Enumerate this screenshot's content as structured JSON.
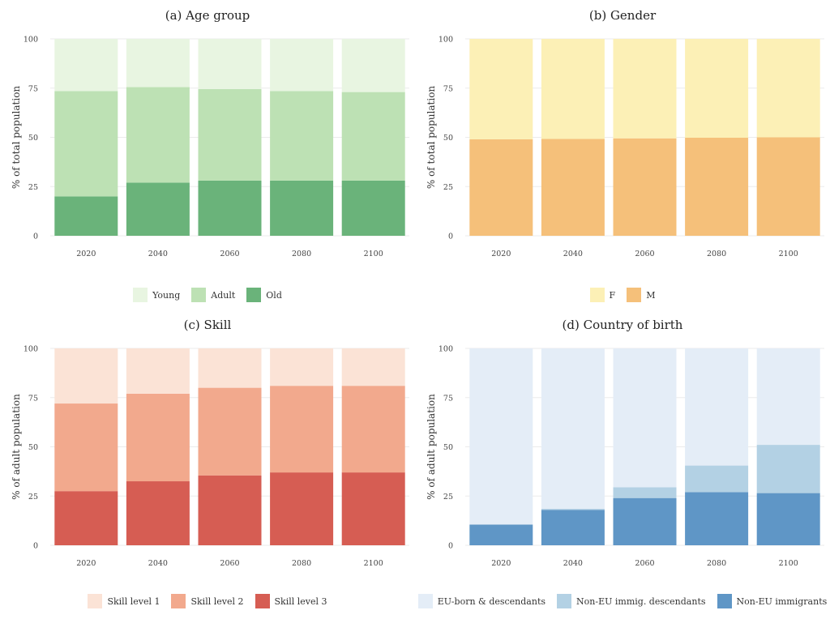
{
  "chart_data": [
    {
      "type": "bar",
      "stacked": true,
      "title": "(a) Age group",
      "ylabel": "% of total population",
      "xlabel": "",
      "ylim": [
        0,
        100
      ],
      "yticks": [
        "0",
        "25",
        "50",
        "75",
        "100"
      ],
      "categories": [
        "2020",
        "2040",
        "2060",
        "2080",
        "2100"
      ],
      "grid": true,
      "legend_position": "bottom",
      "series": [
        {
          "name": "Young",
          "color": "#e8f5e1",
          "values": [
            26.5,
            24.5,
            25.5,
            26.5,
            27
          ]
        },
        {
          "name": "Adult",
          "color": "#bde1b4",
          "values": [
            53.5,
            48.5,
            46.5,
            45.5,
            45
          ]
        },
        {
          "name": "Old",
          "color": "#6ab37a",
          "values": [
            20,
            27,
            28,
            28,
            28
          ]
        }
      ]
    },
    {
      "type": "bar",
      "stacked": true,
      "title": "(b) Gender",
      "ylabel": "% of total population",
      "xlabel": "",
      "ylim": [
        0,
        100
      ],
      "yticks": [
        "0",
        "25",
        "50",
        "75",
        "100"
      ],
      "categories": [
        "2020",
        "2040",
        "2060",
        "2080",
        "2100"
      ],
      "grid": true,
      "legend_position": "bottom",
      "series": [
        {
          "name": "F",
          "color": "#fcf0b6",
          "values": [
            51,
            50.8,
            50.5,
            50.2,
            50
          ]
        },
        {
          "name": "M",
          "color": "#f5c07a",
          "values": [
            49,
            49.2,
            49.5,
            49.8,
            50
          ]
        }
      ]
    },
    {
      "type": "bar",
      "stacked": true,
      "title": "(c) Skill",
      "ylabel": "% of adult population",
      "xlabel": "",
      "ylim": [
        0,
        100
      ],
      "yticks": [
        "0",
        "25",
        "50",
        "75",
        "100"
      ],
      "categories": [
        "2020",
        "2040",
        "2060",
        "2080",
        "2100"
      ],
      "grid": true,
      "legend_position": "bottom",
      "series": [
        {
          "name": "Skill level 1",
          "color": "#fbe3d6",
          "values": [
            28,
            23,
            20,
            19,
            19
          ]
        },
        {
          "name": "Skill level 2",
          "color": "#f2a98d",
          "values": [
            44.5,
            44.5,
            44.5,
            44,
            44
          ]
        },
        {
          "name": "Skill level 3",
          "color": "#d65d53",
          "values": [
            27.5,
            32.5,
            35.5,
            37,
            37
          ]
        }
      ]
    },
    {
      "type": "bar",
      "stacked": true,
      "title": "(d) Country of birth",
      "ylabel": "% of adult population",
      "xlabel": "",
      "ylim": [
        0,
        100
      ],
      "yticks": [
        "0",
        "25",
        "50",
        "75",
        "100"
      ],
      "categories": [
        "2020",
        "2040",
        "2060",
        "2080",
        "2100"
      ],
      "grid": true,
      "legend_position": "bottom",
      "series": [
        {
          "name": "EU-born & descendants",
          "color": "#e4edf7",
          "values": [
            89.5,
            81.5,
            70.5,
            59.5,
            49
          ]
        },
        {
          "name": "Non-EU immig. descendants",
          "color": "#b3d1e4",
          "values": [
            0,
            0.5,
            5.5,
            13.5,
            24.5
          ]
        },
        {
          "name": "Non-EU immigrants",
          "color": "#5f96c6",
          "values": [
            10.5,
            18,
            24,
            27,
            26.5
          ]
        }
      ]
    }
  ]
}
